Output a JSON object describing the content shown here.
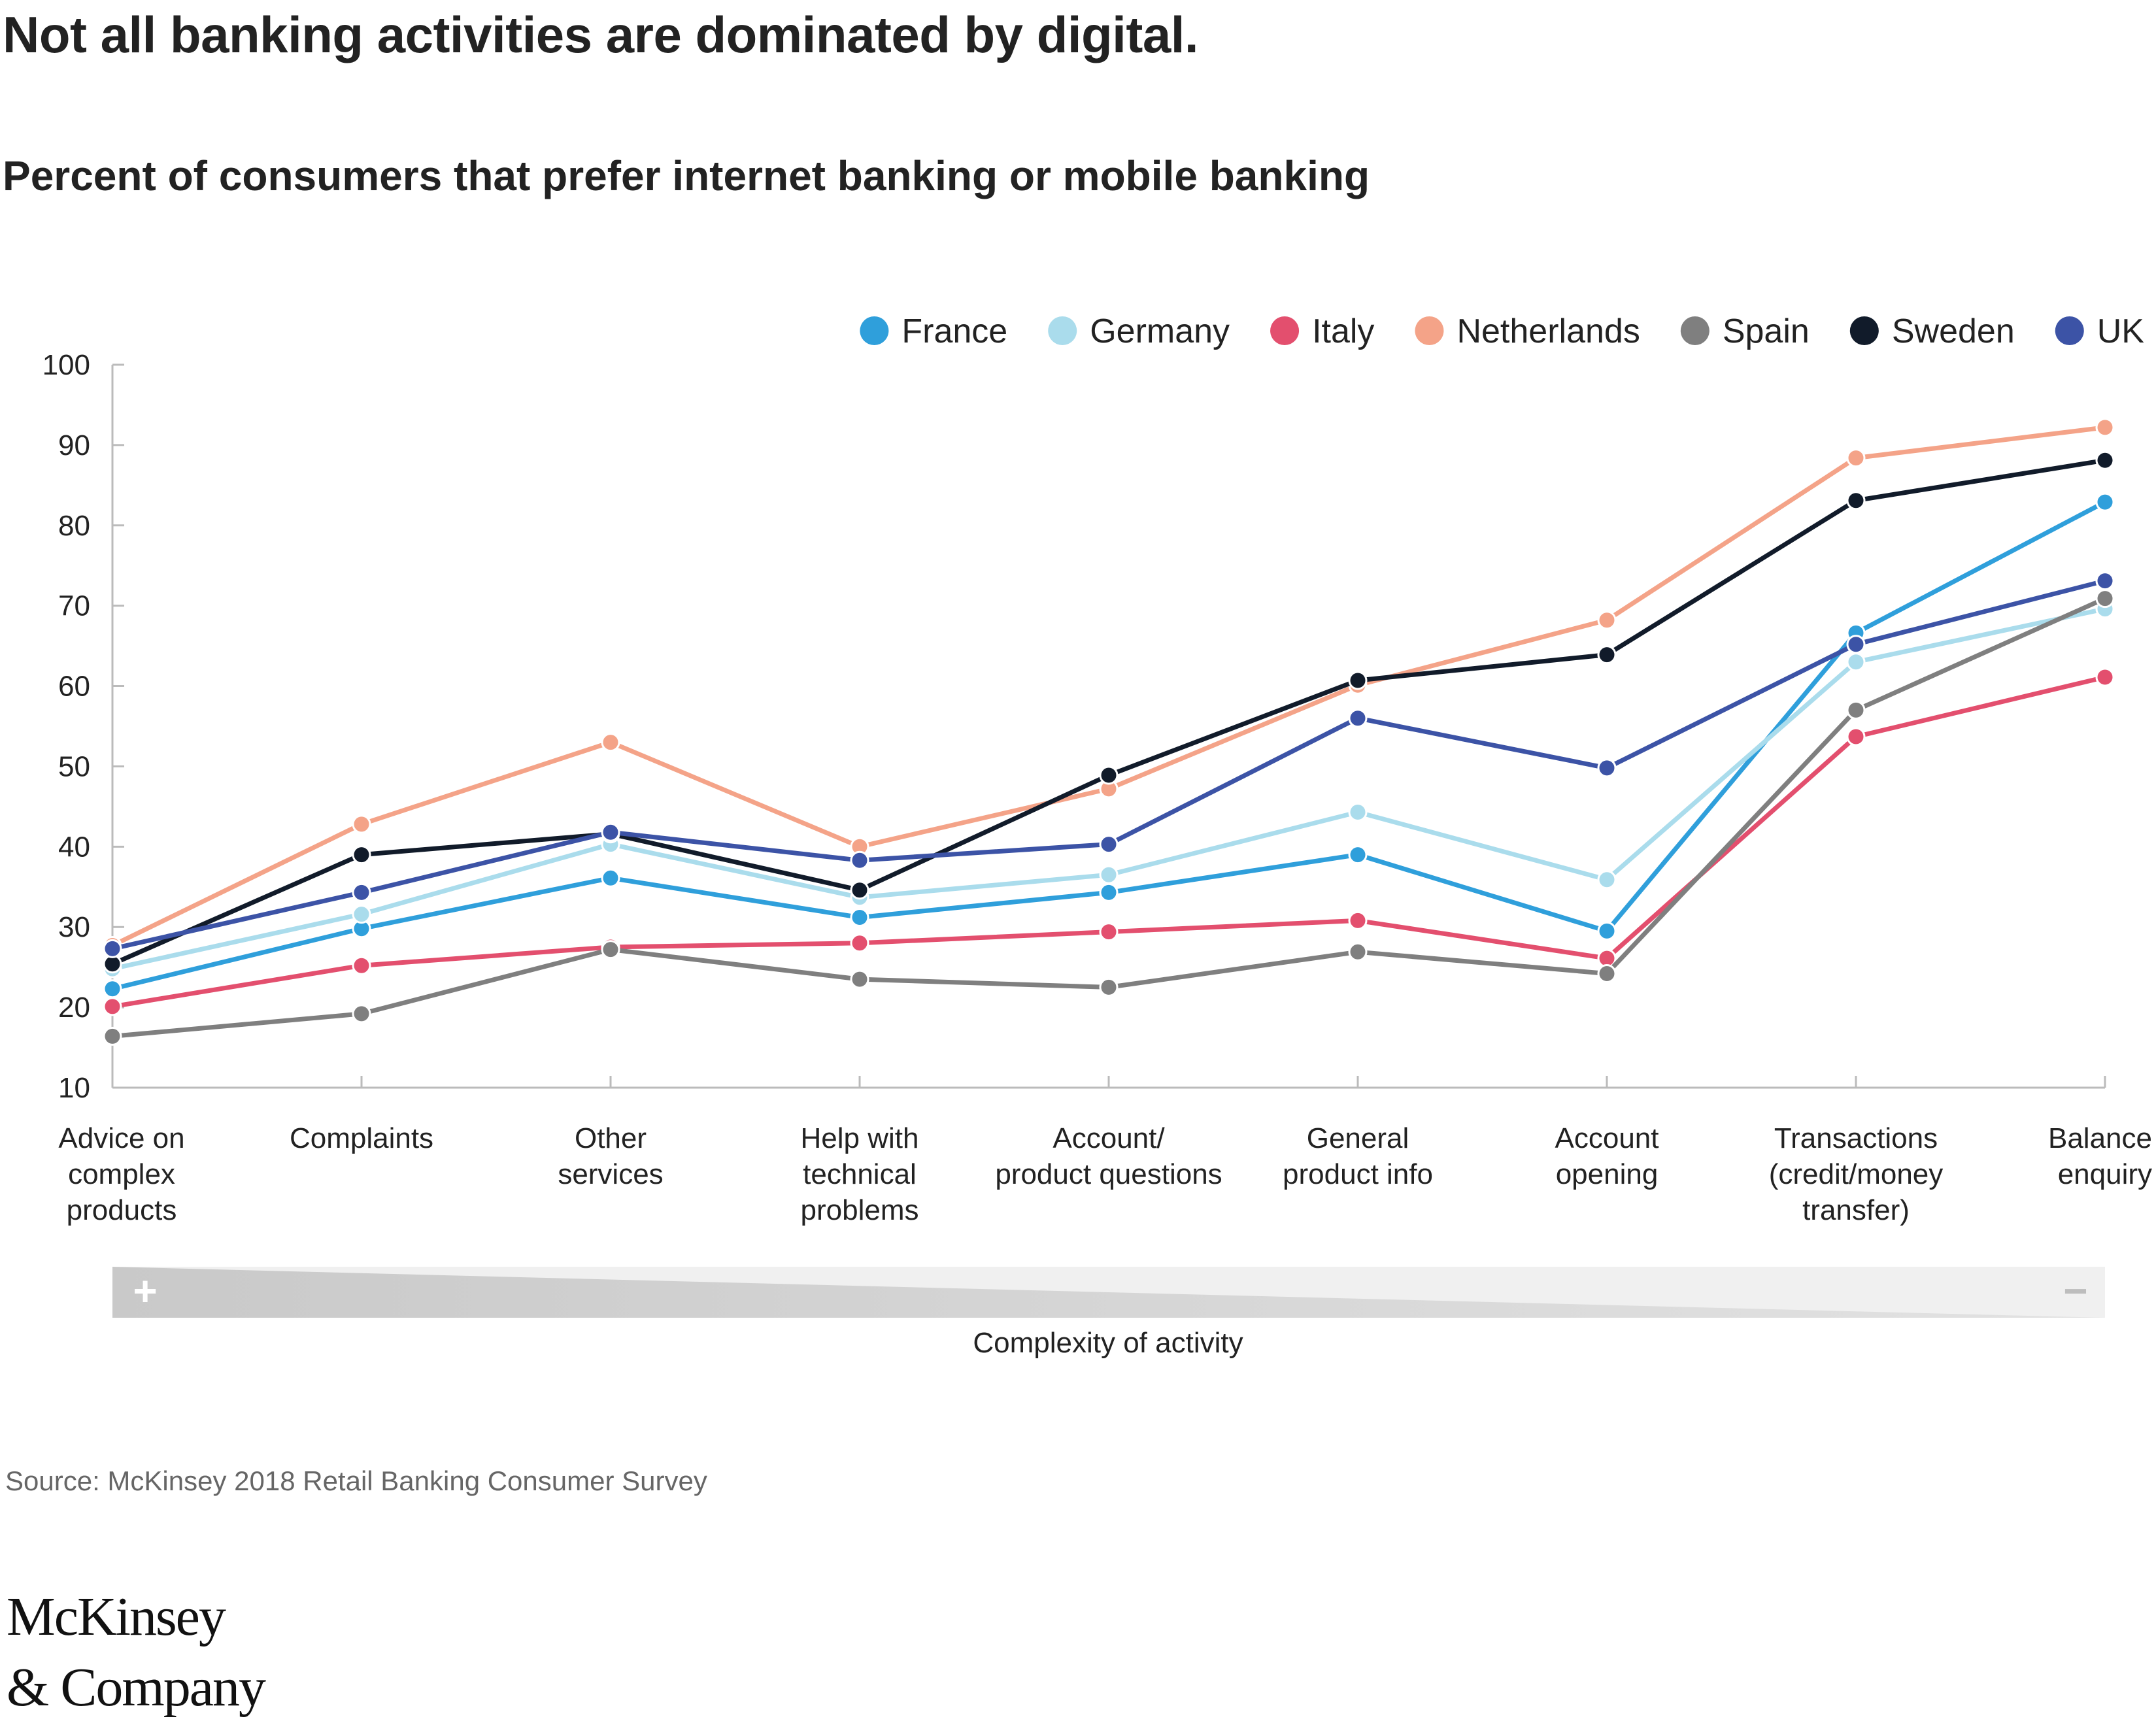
{
  "title": "Not all banking activities are dominated by digital.",
  "subtitle": "Percent of consumers that prefer internet banking or mobile banking",
  "complexity": {
    "label": "Complexity of activity",
    "plus": "+",
    "minus": "−"
  },
  "source": "Source: McKinsey 2018 Retail Banking Consumer Survey",
  "logo": {
    "line1": "McKinsey",
    "line2": "& Company"
  },
  "chart_data": {
    "type": "line",
    "title": "",
    "xlabel": "Complexity of activity",
    "ylabel": "",
    "ylim": [
      10,
      100
    ],
    "yticks": [
      10,
      20,
      30,
      40,
      50,
      60,
      70,
      80,
      90,
      100
    ],
    "grid": false,
    "legend_position": "top-right",
    "categories": [
      [
        "Advice on",
        "complex",
        "products"
      ],
      [
        "Complaints"
      ],
      [
        "Other",
        "services"
      ],
      [
        "Help with",
        "technical",
        "problems"
      ],
      [
        "Account/",
        "product questions"
      ],
      [
        "General",
        "product info"
      ],
      [
        "Account",
        "opening"
      ],
      [
        "Transactions",
        "(credit/money",
        "transfer)"
      ],
      [
        "Balance",
        "enquiry"
      ]
    ],
    "series": [
      {
        "name": "France",
        "color": "#2f9fdb",
        "values": [
          22.3,
          29.8,
          36.1,
          31.2,
          34.3,
          39.0,
          29.5,
          66.6,
          82.9
        ]
      },
      {
        "name": "Germany",
        "color": "#aadcec",
        "values": [
          24.8,
          31.6,
          40.3,
          33.7,
          36.5,
          44.3,
          35.9,
          63.0,
          69.6
        ]
      },
      {
        "name": "Italy",
        "color": "#e34f6e",
        "values": [
          20.1,
          25.2,
          27.5,
          28.0,
          29.4,
          30.8,
          26.1,
          53.7,
          61.1
        ]
      },
      {
        "name": "Netherlands",
        "color": "#f4a388",
        "values": [
          27.7,
          42.8,
          53.0,
          40.0,
          47.2,
          60.1,
          68.2,
          88.4,
          92.2
        ]
      },
      {
        "name": "Spain",
        "color": "#7f7f7f",
        "values": [
          16.4,
          19.2,
          27.2,
          23.5,
          22.5,
          26.9,
          24.2,
          57.0,
          70.9
        ]
      },
      {
        "name": "Sweden",
        "color": "#111b2a",
        "values": [
          25.4,
          39.0,
          41.6,
          34.6,
          48.9,
          60.7,
          63.9,
          83.1,
          88.1
        ]
      },
      {
        "name": "UK",
        "color": "#3c53a6",
        "values": [
          27.3,
          34.3,
          41.8,
          38.3,
          40.3,
          56.0,
          49.8,
          65.2,
          73.1
        ]
      }
    ]
  }
}
